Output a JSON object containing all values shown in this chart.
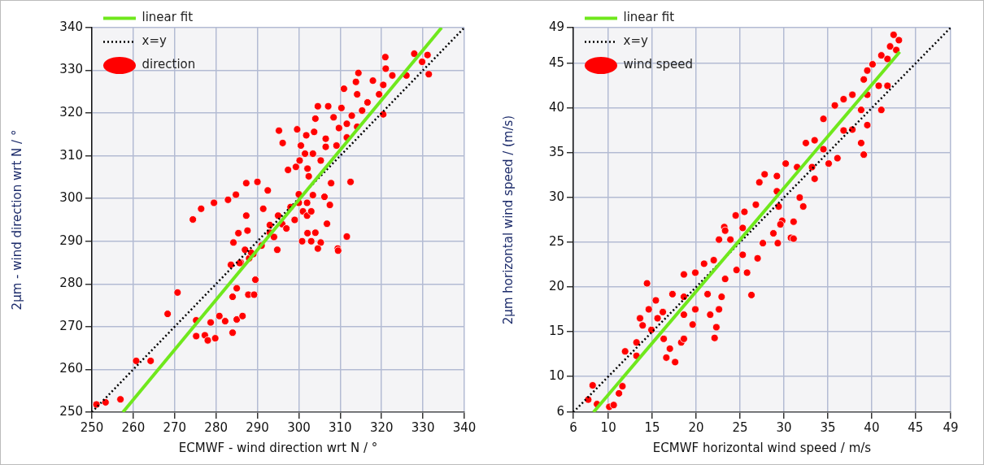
{
  "chart_data": [
    {
      "type": "scatter",
      "xlabel": "ECMWF - wind direction wrt N / °",
      "ylabel": "2µm - wind direction wrt N / °",
      "xlim": [
        250,
        340
      ],
      "ylim": [
        250,
        340
      ],
      "xticks": [
        250,
        260,
        270,
        280,
        290,
        300,
        310,
        320,
        330,
        340
      ],
      "yticks": [
        250,
        260,
        270,
        280,
        290,
        300,
        310,
        320,
        330,
        340
      ],
      "grid": true,
      "legend": "top left",
      "series": [
        {
          "name": "linear fit",
          "type": "line",
          "color": "#6fe81c",
          "line_style": "solid",
          "marker": "none",
          "x": [
            257.5,
            334.5
          ],
          "values": [
            250,
            340
          ]
        },
        {
          "name": "x=y",
          "type": "line",
          "color": "#000000",
          "line_style": "dotted",
          "marker": "none",
          "x": [
            250,
            340
          ],
          "values": [
            250,
            340
          ]
        },
        {
          "name": "direction",
          "type": "scatter",
          "color": "#ff0000",
          "marker": "circle",
          "x": [
            320.9,
            327.9,
            331.1,
            331.4,
            329.8,
            321,
            322.6,
            326,
            314.4,
            313.8,
            317.9,
            320.4,
            310.9,
            314.1,
            319.4,
            304.6,
            307.1,
            310.3,
            312.8,
            316.6,
            315.3,
            311.6,
            314.1,
            320.4,
            304,
            308.4,
            309.7,
            295.2,
            299.6,
            303.7,
            296.1,
            301.8,
            306.5,
            300.5,
            309.1,
            306.5,
            311.6,
            301.5,
            303.4,
            300.2,
            305.3,
            297.4,
            299.3,
            302.1,
            302.4,
            307.8,
            312.5,
            287.3,
            290,
            292.5,
            282.9,
            284.8,
            279.5,
            276.4,
            274.4,
            287.3,
            291.4,
            303.4,
            306.2,
            307.5,
            306.8,
            287.6,
            285.4,
            284.2,
            293,
            302.1,
            300.8,
            305.3,
            309.4,
            311.6,
            295,
            298,
            300,
            296,
            293,
            301,
            299,
            302,
            297,
            294,
            291,
            289,
            288,
            287,
            286,
            300,
            302,
            303,
            304,
            303,
            251.1,
            253.3,
            256.9,
            260.7,
            264.2,
            268.3,
            270.7,
            275.2,
            275.2,
            277.3,
            278,
            279.8,
            278.7,
            280.8,
            282.2,
            284,
            284,
            285,
            286.4,
            285,
            287.8,
            289.2,
            289.5,
            283.6,
            285.7,
            288.5,
            294.8,
            304.6,
            309.5
          ],
          "values": [
            333.1,
            333.9,
            333.6,
            329.1,
            332,
            330.4,
            328.8,
            328.8,
            329.4,
            327.3,
            327.6,
            326.6,
            325.7,
            324.4,
            324.4,
            321.6,
            321.6,
            321.2,
            319.4,
            322.5,
            320.6,
            317.5,
            316.8,
            319.7,
            318.7,
            319,
            316.5,
            315.9,
            316.2,
            315.6,
            313,
            314.8,
            314,
            312.4,
            312.4,
            312.1,
            314.3,
            310.5,
            310.5,
            308.9,
            308.9,
            306.7,
            307.4,
            307,
            305.2,
            303.6,
            303.9,
            303.6,
            303.9,
            301.9,
            299.7,
            300.9,
            299,
            297.6,
            295.1,
            296,
            297.6,
            300.8,
            300.4,
            298.5,
            294.1,
            292.5,
            291.9,
            289.7,
            293.8,
            291.9,
            290,
            289.7,
            288.3,
            291.1,
            296,
            298,
            299,
            294,
            292,
            297,
            295,
            296,
            293,
            291,
            289,
            287,
            286,
            288,
            285,
            301,
            299,
            297,
            292,
            290,
            251.8,
            252.3,
            253,
            262,
            262,
            273,
            278,
            271.5,
            267.8,
            268,
            266.8,
            267.3,
            271,
            272.5,
            271.3,
            268.6,
            277,
            271.7,
            272.5,
            279,
            277.5,
            277.5,
            281,
            284.5,
            284.9,
            287.3,
            288,
            288.3,
            287.8
          ]
        }
      ]
    },
    {
      "type": "scatter",
      "xlabel": "ECMWF horizontal wind speed / m/s",
      "ylabel": "2µm horizontal wind speed / (m/s)",
      "xlim": [
        6,
        49
      ],
      "ylim": [
        6,
        49
      ],
      "xticks": [
        6,
        10,
        15,
        20,
        25,
        30,
        35,
        40,
        45,
        49
      ],
      "yticks": [
        6,
        10,
        15,
        20,
        25,
        30,
        35,
        40,
        45,
        49
      ],
      "grid": true,
      "legend": "top left",
      "series": [
        {
          "name": "linear fit",
          "type": "line",
          "color": "#6fe81c",
          "line_style": "solid",
          "marker": "none",
          "x": [
            8.3,
            43.2
          ],
          "values": [
            6,
            46.3
          ]
        },
        {
          "name": "x=y",
          "type": "line",
          "color": "#000000",
          "line_style": "dotted",
          "marker": "none",
          "x": [
            6,
            49
          ],
          "values": [
            6,
            49
          ]
        },
        {
          "name": "wind speed",
          "type": "scatter",
          "color": "#ff0000",
          "marker": "circle",
          "x": [
            42.5,
            43.1,
            42.1,
            41.1,
            40.1,
            39.5,
            41.8,
            42.8,
            39.1,
            40.8,
            41.8,
            37.8,
            36.8,
            35.8,
            41.1,
            39.5,
            38.8,
            34.5,
            39.5,
            37.8,
            36.8,
            38.8,
            39.1,
            32.5,
            33.5,
            34.5,
            36.1,
            35.1,
            33.2,
            33.5,
            30.2,
            31.5,
            27.8,
            29.2,
            27.2,
            29.2,
            31.8,
            29.4,
            32.2,
            26.8,
            25.5,
            24.5,
            23.2,
            23.9,
            30.8,
            28.8,
            29.8,
            23.3,
            25.3,
            22.6,
            27.6,
            29.3,
            31.1,
            31.1,
            29.6,
            25.3,
            27,
            25.8,
            24.6,
            26.3,
            23.3,
            22,
            20.9,
            19.9,
            18.6,
            14.4,
            17.3,
            18.6,
            21.3,
            22.6,
            22.9,
            19.9,
            18.6,
            19.6,
            21.6,
            15.4,
            16.2,
            14.6,
            13.6,
            13.9,
            14.9,
            22.3,
            22.1,
            16.3,
            17,
            16.6,
            17.6,
            18.3,
            18.6,
            13.2,
            11.9,
            13.2,
            8.2,
            7.7,
            8.7,
            10.1,
            10.6,
            11.2,
            11.6,
            15.6
          ],
          "values": [
            48.2,
            47.6,
            46.9,
            45.9,
            44.9,
            44.2,
            45.5,
            46.5,
            43.2,
            42.5,
            42.5,
            41.5,
            41,
            40.3,
            39.8,
            41.5,
            39.8,
            38.8,
            38.1,
            37.6,
            37.5,
            36.1,
            34.8,
            36.1,
            36.4,
            35.4,
            34.4,
            33.8,
            33.4,
            32.1,
            33.8,
            33.4,
            32.6,
            32.4,
            31.7,
            30.7,
            30,
            29,
            29,
            29.2,
            28.4,
            28,
            26.7,
            25.3,
            25.5,
            26,
            27.4,
            26.3,
            26.6,
            25.3,
            24.9,
            24.9,
            25.4,
            27.3,
            27,
            23.6,
            23.2,
            21.6,
            21.9,
            19.1,
            20.9,
            23,
            22.6,
            21.6,
            21.4,
            20.4,
            19.2,
            18.9,
            19.2,
            17.5,
            18.9,
            17.5,
            16.9,
            15.8,
            16.9,
            18.5,
            17.2,
            17.5,
            16.5,
            15.7,
            15.2,
            15.5,
            14.3,
            14.2,
            13.1,
            12.1,
            11.6,
            13.8,
            14.2,
            13.8,
            12.8,
            12.3,
            9,
            7.4,
            6.9,
            6.6,
            6.8,
            8.1,
            8.9,
            16.5
          ]
        }
      ]
    }
  ]
}
